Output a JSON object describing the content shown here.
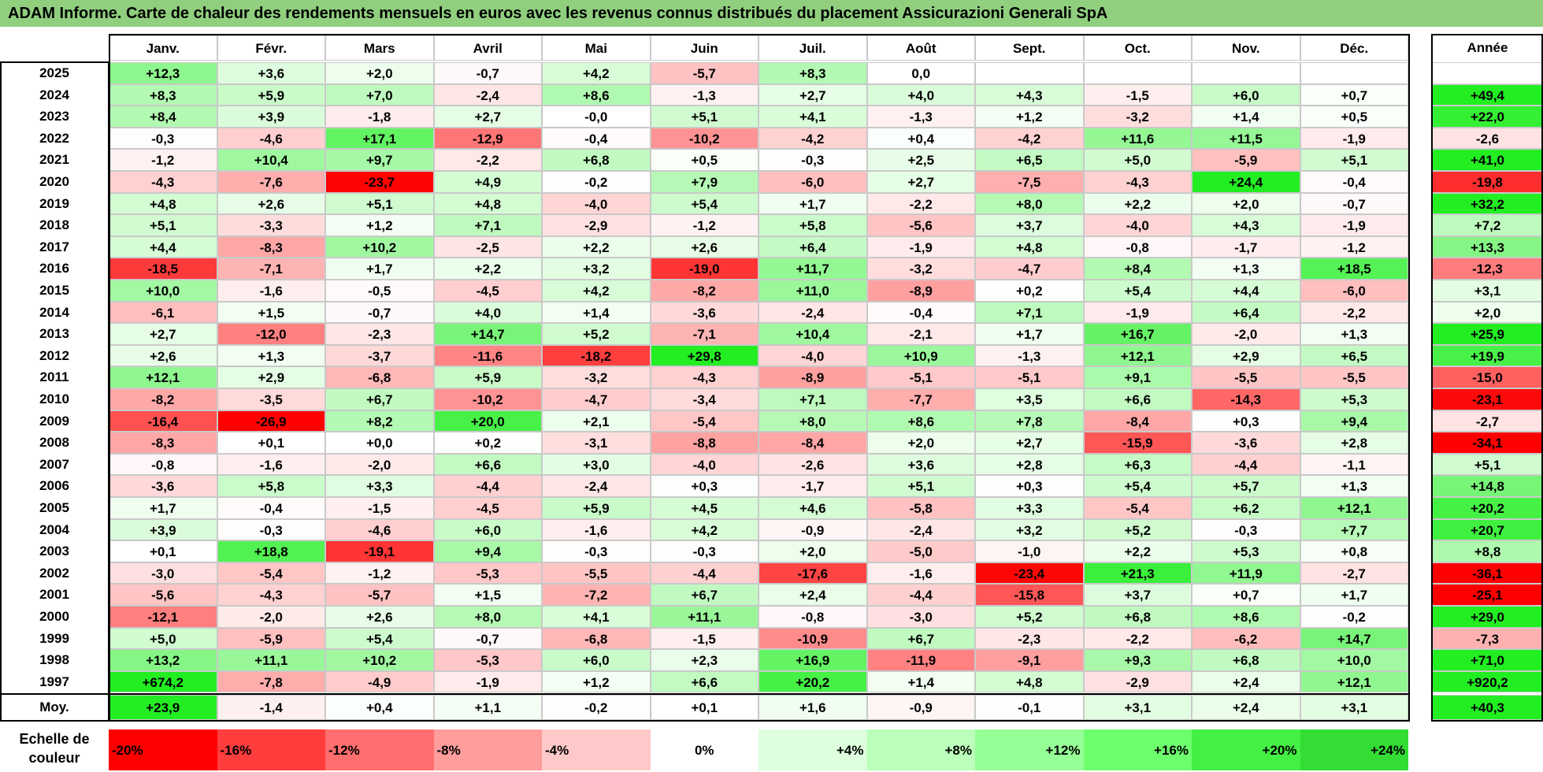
{
  "title": "ADAM Informe. Carte de chaleur des rendements mensuels en euros avec les revenus connus distribués du placement Assicurazioni Generali SpA",
  "chart_data": {
    "type": "heatmap",
    "title": "ADAM Informe. Carte de chaleur des rendements mensuels en euros avec les revenus connus distribués du placement Assicurazioni Generali SpA",
    "columns": [
      "Janv.",
      "Févr.",
      "Mars",
      "Avril",
      "Mai",
      "Juin",
      "Juil.",
      "Août",
      "Sept.",
      "Oct.",
      "Nov.",
      "Déc."
    ],
    "year_column_label": "Année",
    "rows": [
      {
        "year": "2025",
        "values": [
          "+12,3",
          "+3,6",
          "+2,0",
          "-0,7",
          "+4,2",
          "-5,7",
          "+8,3",
          "0,0",
          "",
          "",
          "",
          ""
        ],
        "annual": ""
      },
      {
        "year": "2024",
        "values": [
          "+8,3",
          "+5,9",
          "+7,0",
          "-2,4",
          "+8,6",
          "-1,3",
          "+2,7",
          "+4,0",
          "+4,3",
          "-1,5",
          "+6,0",
          "+0,7"
        ],
        "annual": "+49,4"
      },
      {
        "year": "2023",
        "values": [
          "+8,4",
          "+3,9",
          "-1,8",
          "+2,7",
          "-0,0",
          "+5,1",
          "+4,1",
          "-1,3",
          "+1,2",
          "-3,2",
          "+1,4",
          "+0,5"
        ],
        "annual": "+22,0"
      },
      {
        "year": "2022",
        "values": [
          "-0,3",
          "-4,6",
          "+17,1",
          "-12,9",
          "-0,4",
          "-10,2",
          "-4,2",
          "+0,4",
          "-4,2",
          "+11,6",
          "+11,5",
          "-1,9"
        ],
        "annual": "-2,6"
      },
      {
        "year": "2021",
        "values": [
          "-1,2",
          "+10,4",
          "+9,7",
          "-2,2",
          "+6,8",
          "+0,5",
          "-0,3",
          "+2,5",
          "+6,5",
          "+5,0",
          "-5,9",
          "+5,1"
        ],
        "annual": "+41,0"
      },
      {
        "year": "2020",
        "values": [
          "-4,3",
          "-7,6",
          "-23,7",
          "+4,9",
          "-0,2",
          "+7,9",
          "-6,0",
          "+2,7",
          "-7,5",
          "-4,3",
          "+24,4",
          "-0,4"
        ],
        "annual": "-19,8"
      },
      {
        "year": "2019",
        "values": [
          "+4,8",
          "+2,6",
          "+5,1",
          "+4,8",
          "-4,0",
          "+5,4",
          "+1,7",
          "-2,2",
          "+8,0",
          "+2,2",
          "+2,0",
          "-0,7"
        ],
        "annual": "+32,2"
      },
      {
        "year": "2018",
        "values": [
          "+5,1",
          "-3,3",
          "+1,2",
          "+7,1",
          "-2,9",
          "-1,2",
          "+5,8",
          "-5,6",
          "+3,7",
          "-4,0",
          "+4,3",
          "-1,9"
        ],
        "annual": "+7,2"
      },
      {
        "year": "2017",
        "values": [
          "+4,4",
          "-8,3",
          "+10,2",
          "-2,5",
          "+2,2",
          "+2,6",
          "+6,4",
          "-1,9",
          "+4,8",
          "-0,8",
          "-1,7",
          "-1,2"
        ],
        "annual": "+13,3"
      },
      {
        "year": "2016",
        "values": [
          "-18,5",
          "-7,1",
          "+1,7",
          "+2,2",
          "+3,2",
          "-19,0",
          "+11,7",
          "-3,2",
          "-4,7",
          "+8,4",
          "+1,3",
          "+18,5"
        ],
        "annual": "-12,3"
      },
      {
        "year": "2015",
        "values": [
          "+10,0",
          "-1,6",
          "-0,5",
          "-4,5",
          "+4,2",
          "-8,2",
          "+11,0",
          "-8,9",
          "+0,2",
          "+5,4",
          "+4,4",
          "-6,0"
        ],
        "annual": "+3,1"
      },
      {
        "year": "2014",
        "values": [
          "-6,1",
          "+1,5",
          "-0,7",
          "+4,0",
          "+1,4",
          "-3,6",
          "-2,4",
          "-0,4",
          "+7,1",
          "-1,9",
          "+6,4",
          "-2,2"
        ],
        "annual": "+2,0"
      },
      {
        "year": "2013",
        "values": [
          "+2,7",
          "-12,0",
          "-2,3",
          "+14,7",
          "+5,2",
          "-7,1",
          "+10,4",
          "-2,1",
          "+1,7",
          "+16,7",
          "-2,0",
          "+1,3"
        ],
        "annual": "+25,9"
      },
      {
        "year": "2012",
        "values": [
          "+2,6",
          "+1,3",
          "-3,7",
          "-11,6",
          "-18,2",
          "+29,8",
          "-4,0",
          "+10,9",
          "-1,3",
          "+12,1",
          "+2,9",
          "+6,5"
        ],
        "annual": "+19,9"
      },
      {
        "year": "2011",
        "values": [
          "+12,1",
          "+2,9",
          "-6,8",
          "+5,9",
          "-3,2",
          "-4,3",
          "-8,9",
          "-5,1",
          "-5,1",
          "+9,1",
          "-5,5",
          "-5,5"
        ],
        "annual": "-15,0"
      },
      {
        "year": "2010",
        "values": [
          "-8,2",
          "-3,5",
          "+6,7",
          "-10,2",
          "-4,7",
          "-3,4",
          "+7,1",
          "-7,7",
          "+3,5",
          "+6,6",
          "-14,3",
          "+5,3"
        ],
        "annual": "-23,1"
      },
      {
        "year": "2009",
        "values": [
          "-16,4",
          "-26,9",
          "+8,2",
          "+20,0",
          "+2,1",
          "-5,4",
          "+8,0",
          "+8,6",
          "+7,8",
          "-8,4",
          "+0,3",
          "+9,4"
        ],
        "annual": "-2,7"
      },
      {
        "year": "2008",
        "values": [
          "-8,3",
          "+0,1",
          "+0,0",
          "+0,2",
          "-3,1",
          "-8,8",
          "-8,4",
          "+2,0",
          "+2,7",
          "-15,9",
          "-3,6",
          "+2,8"
        ],
        "annual": "-34,1"
      },
      {
        "year": "2007",
        "values": [
          "-0,8",
          "-1,6",
          "-2,0",
          "+6,6",
          "+3,0",
          "-4,0",
          "-2,6",
          "+3,6",
          "+2,8",
          "+6,3",
          "-4,4",
          "-1,1"
        ],
        "annual": "+5,1"
      },
      {
        "year": "2006",
        "values": [
          "-3,6",
          "+5,8",
          "+3,3",
          "-4,4",
          "-2,4",
          "+0,3",
          "-1,7",
          "+5,1",
          "+0,3",
          "+5,4",
          "+5,7",
          "+1,3"
        ],
        "annual": "+14,8"
      },
      {
        "year": "2005",
        "values": [
          "+1,7",
          "-0,4",
          "-1,5",
          "-4,5",
          "+5,9",
          "+4,5",
          "+4,6",
          "-5,8",
          "+3,3",
          "-5,4",
          "+6,2",
          "+12,1"
        ],
        "annual": "+20,2"
      },
      {
        "year": "2004",
        "values": [
          "+3,9",
          "-0,3",
          "-4,6",
          "+6,0",
          "-1,6",
          "+4,2",
          "-0,9",
          "-2,4",
          "+3,2",
          "+5,2",
          "-0,3",
          "+7,7"
        ],
        "annual": "+20,7"
      },
      {
        "year": "2003",
        "values": [
          "+0,1",
          "+18,8",
          "-19,1",
          "+9,4",
          "-0,3",
          "-0,3",
          "+2,0",
          "-5,0",
          "-1,0",
          "+2,2",
          "+5,3",
          "+0,8"
        ],
        "annual": "+8,8"
      },
      {
        "year": "2002",
        "values": [
          "-3,0",
          "-5,4",
          "-1,2",
          "-5,3",
          "-5,5",
          "-4,4",
          "-17,6",
          "-1,6",
          "-23,4",
          "+21,3",
          "+11,9",
          "-2,7"
        ],
        "annual": "-36,1"
      },
      {
        "year": "2001",
        "values": [
          "-5,6",
          "-4,3",
          "-5,7",
          "+1,5",
          "-7,2",
          "+6,7",
          "+2,4",
          "-4,4",
          "-15,8",
          "+3,7",
          "+0,7",
          "+1,7"
        ],
        "annual": "-25,1"
      },
      {
        "year": "2000",
        "values": [
          "-12,1",
          "-2,0",
          "+2,6",
          "+8,0",
          "+4,1",
          "+11,1",
          "-0,8",
          "-3,0",
          "+5,2",
          "+6,8",
          "+8,6",
          "-0,2"
        ],
        "annual": "+29,0"
      },
      {
        "year": "1999",
        "values": [
          "+5,0",
          "-5,9",
          "+5,4",
          "-0,7",
          "-6,8",
          "-1,5",
          "-10,9",
          "+6,7",
          "-2,3",
          "-2,2",
          "-6,2",
          "+14,7"
        ],
        "annual": "-7,3"
      },
      {
        "year": "1998",
        "values": [
          "+13,2",
          "+11,1",
          "+10,2",
          "-5,3",
          "+6,0",
          "+2,3",
          "+16,9",
          "-11,9",
          "-9,1",
          "+9,3",
          "+6,8",
          "+10,0"
        ],
        "annual": "+71,0"
      },
      {
        "year": "1997",
        "values": [
          "+674,2",
          "-7,8",
          "-4,9",
          "-1,9",
          "+1,2",
          "+6,6",
          "+20,2",
          "+1,4",
          "+4,8",
          "-2,9",
          "+2,4",
          "+12,1"
        ],
        "annual": "+920,2"
      }
    ],
    "average": {
      "label": "Moy.",
      "values": [
        "+23,9",
        "-1,4",
        "+0,4",
        "+1,1",
        "-0,2",
        "+0,1",
        "+1,6",
        "-0,9",
        "-0,1",
        "+3,1",
        "+2,4",
        "+3,1"
      ],
      "annual": "+40,3"
    },
    "scale": {
      "label_line1": "Echelle de",
      "label_line2": "couleur",
      "items": [
        "-20%",
        "-16%",
        "-12%",
        "-8%",
        "-4%",
        "0%",
        "+4%",
        "+8%",
        "+12%",
        "+16%",
        "+20%",
        "+24%"
      ],
      "colors": [
        "#ff0000",
        "#ff3d3d",
        "#ff6e6e",
        "#ff9c9c",
        "#ffc9c9",
        "#ffffff",
        "#ddffdd",
        "#bbffbb",
        "#96ff96",
        "#6eff6e",
        "#44f044",
        "#33dd33"
      ]
    },
    "colors": {
      "negative_max": "#ff0000",
      "neutral": "#ffffff",
      "positive_max": "#22ee22",
      "title_bg": "#8fcf7e"
    }
  }
}
